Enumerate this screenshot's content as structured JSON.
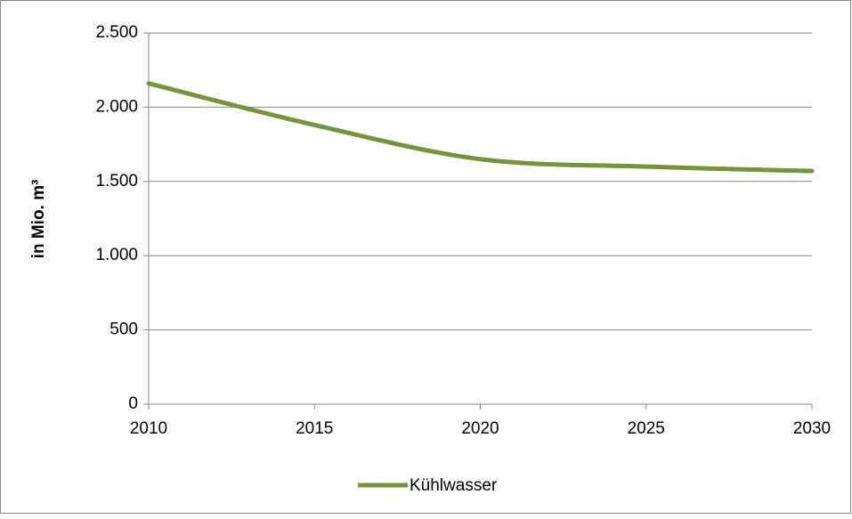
{
  "chart_data": {
    "type": "line",
    "ylabel": "in Mio. m³",
    "x": [
      2010,
      2015,
      2020,
      2025,
      2030
    ],
    "series": [
      {
        "name": "Kühlwasser",
        "color": "#77933c",
        "values": [
          2160,
          1880,
          1650,
          1600,
          1570
        ]
      }
    ],
    "xlim": [
      2010,
      2030
    ],
    "xticks": [
      2010,
      2015,
      2020,
      2025,
      2030
    ],
    "ylim": [
      0,
      2500
    ],
    "yticks": [
      0,
      500,
      {
        "value": 1000,
        "label": "1.000"
      },
      {
        "value": 1500,
        "label": "1.500"
      },
      {
        "value": 2000,
        "label": "2.000"
      },
      {
        "value": 2500,
        "label": "2.500"
      }
    ],
    "grid": true,
    "legend": "bottom"
  }
}
